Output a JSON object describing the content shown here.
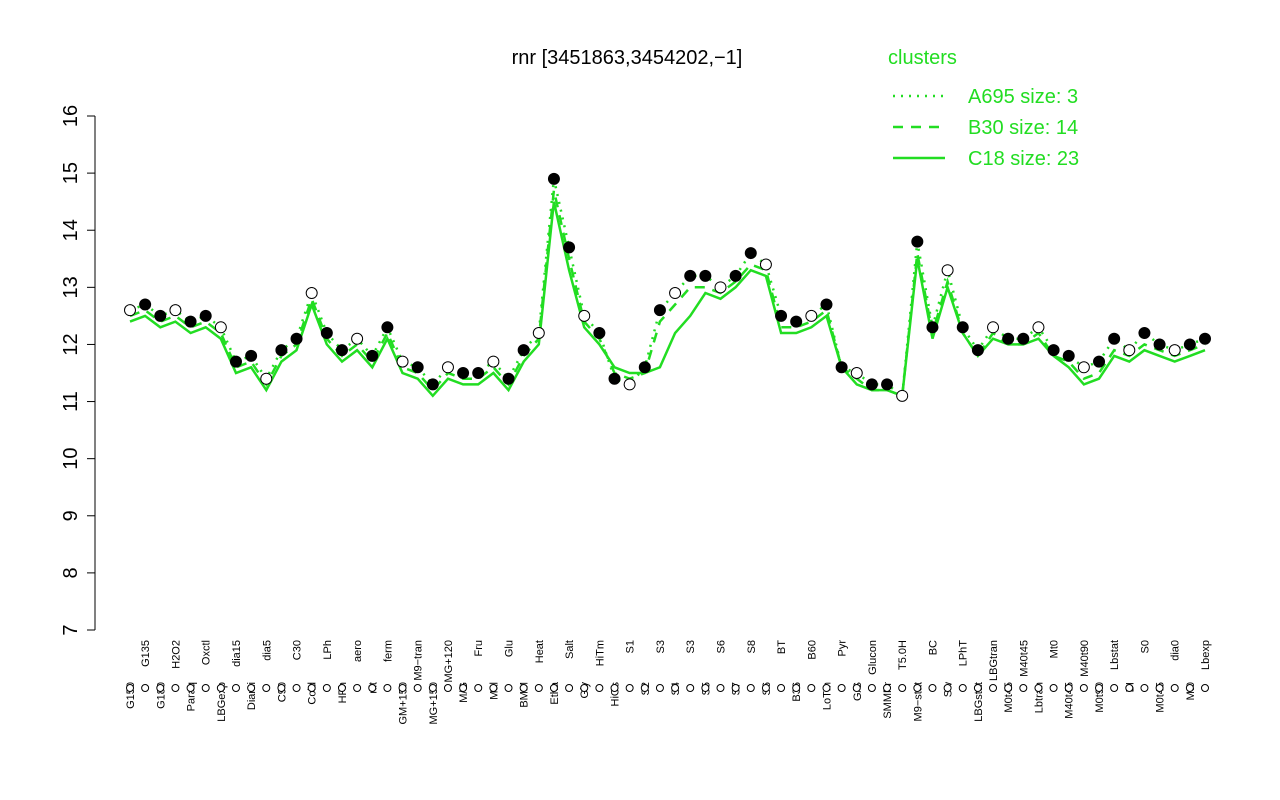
{
  "chart_data": {
    "type": "line",
    "title": "rnr [3451863,3454202,−1]",
    "categories": [
      "G150",
      "G135",
      "G180",
      "H2O2",
      "Paraq",
      "Oxctl",
      "LBGexp",
      "dia15",
      "Diami",
      "dia5",
      "C90",
      "C30",
      "Cold",
      "LPh",
      "HPh",
      "aero",
      "nit",
      "ferm",
      "GM+150",
      "M9−tran",
      "MG+150",
      "MG+120",
      "M/G",
      "Fru",
      "Mal",
      "Glu",
      "BMM",
      "Heat",
      "Etha",
      "Salt",
      "Gly",
      "HiTm",
      "HiOs",
      "S1",
      "S2",
      "S3",
      "S4",
      "S3",
      "S5",
      "S6",
      "S7",
      "S8",
      "S6",
      "BT",
      "B36",
      "B60",
      "LoTm",
      "Pyr",
      "G/S",
      "Glucon",
      "SMMPr",
      "T5.0H",
      "M9−stat",
      "BC",
      "Sw",
      "LPhT",
      "LBGstat",
      "LBGtran",
      "M0t45",
      "M40t45",
      "Lbtran",
      "Mt0",
      "M40t45",
      "M40t90",
      "M0t90",
      "Lbstat",
      "BI",
      "S0",
      "M0t45",
      "dia0",
      "Mt0",
      "Lbexp"
    ],
    "point_values": [
      12.6,
      12.7,
      12.5,
      12.6,
      12.4,
      12.5,
      12.3,
      11.7,
      11.8,
      11.4,
      11.9,
      12.1,
      12.9,
      12.2,
      11.9,
      12.1,
      11.8,
      12.3,
      11.7,
      11.6,
      11.3,
      11.6,
      11.5,
      11.5,
      11.7,
      11.4,
      11.9,
      12.2,
      14.9,
      13.7,
      12.5,
      12.2,
      11.4,
      11.3,
      11.6,
      12.6,
      12.9,
      13.2,
      13.2,
      13.0,
      13.2,
      13.6,
      13.4,
      12.5,
      12.4,
      12.5,
      12.7,
      11.6,
      11.5,
      11.3,
      11.3,
      11.1,
      13.8,
      12.3,
      13.3,
      12.3,
      11.9,
      12.3,
      12.1,
      12.1,
      12.3,
      11.9,
      11.8,
      11.6,
      11.7,
      12.1,
      11.9,
      12.2,
      12.0,
      11.9,
      12.0,
      12.1
    ],
    "legend_title": "clusters",
    "series": [
      {
        "name": "A695 size: 3",
        "color": "#22dd22",
        "dash": "dotted",
        "values": [
          12.6,
          12.7,
          12.5,
          12.6,
          12.4,
          12.5,
          12.3,
          11.7,
          11.8,
          11.4,
          11.9,
          12.1,
          12.9,
          12.2,
          11.9,
          12.1,
          11.8,
          12.3,
          11.7,
          11.6,
          11.3,
          11.6,
          11.5,
          11.5,
          11.7,
          11.4,
          11.9,
          12.2,
          14.9,
          13.7,
          12.5,
          12.2,
          11.4,
          11.3,
          11.6,
          12.6,
          12.9,
          13.2,
          13.2,
          13.0,
          13.2,
          13.6,
          13.4,
          12.5,
          12.4,
          12.5,
          12.7,
          11.6,
          11.5,
          11.3,
          11.3,
          11.1,
          13.8,
          12.3,
          13.3,
          12.3,
          11.9,
          12.3,
          12.1,
          12.1,
          12.3,
          11.9,
          11.8,
          11.6,
          11.7,
          12.1,
          11.9,
          12.2,
          12.0,
          11.9,
          12.0,
          12.1
        ]
      },
      {
        "name": "B30 size: 14",
        "color": "#22dd22",
        "dash": "dashed",
        "values": [
          12.5,
          12.6,
          12.4,
          12.5,
          12.3,
          12.4,
          12.2,
          11.6,
          11.7,
          11.3,
          11.8,
          12.0,
          12.8,
          12.1,
          11.8,
          12.0,
          11.7,
          12.2,
          11.6,
          11.5,
          11.2,
          11.5,
          11.4,
          11.4,
          11.6,
          11.3,
          11.8,
          12.1,
          14.7,
          13.5,
          12.4,
          12.1,
          11.5,
          11.4,
          11.5,
          12.4,
          12.7,
          13.0,
          13.0,
          12.9,
          13.1,
          13.4,
          13.3,
          12.3,
          12.3,
          12.4,
          12.6,
          11.6,
          11.4,
          11.2,
          11.2,
          11.1,
          13.6,
          12.2,
          13.1,
          12.2,
          11.8,
          12.2,
          12.0,
          12.0,
          12.2,
          11.8,
          11.7,
          11.4,
          11.5,
          11.9,
          11.8,
          12.0,
          11.9,
          11.8,
          11.9,
          12.0
        ]
      },
      {
        "name": "C18 size: 23",
        "color": "#22dd22",
        "dash": "solid",
        "values": [
          12.4,
          12.5,
          12.3,
          12.4,
          12.2,
          12.3,
          12.1,
          11.5,
          11.6,
          11.2,
          11.7,
          11.9,
          12.7,
          12.0,
          11.7,
          11.9,
          11.6,
          12.1,
          11.5,
          11.4,
          11.1,
          11.4,
          11.3,
          11.3,
          11.5,
          11.2,
          11.7,
          12.0,
          14.5,
          13.3,
          12.3,
          12.0,
          11.6,
          11.5,
          11.5,
          11.6,
          12.2,
          12.5,
          12.9,
          12.8,
          13.0,
          13.3,
          13.2,
          12.2,
          12.2,
          12.3,
          12.5,
          11.6,
          11.3,
          11.2,
          11.2,
          11.1,
          13.5,
          12.1,
          13.0,
          12.2,
          11.8,
          12.1,
          12.0,
          12.0,
          12.1,
          11.8,
          11.6,
          11.3,
          11.4,
          11.8,
          11.7,
          11.9,
          11.8,
          11.7,
          11.8,
          11.9
        ]
      }
    ],
    "ylim": [
      7,
      16
    ],
    "yticks": [
      7,
      8,
      9,
      10,
      11,
      12,
      13,
      14,
      15,
      16
    ]
  }
}
